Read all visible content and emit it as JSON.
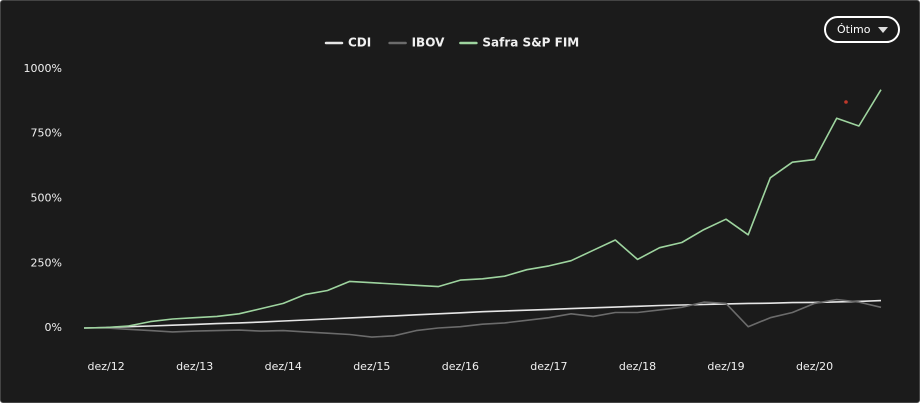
{
  "controls": {
    "period": "Ótimo"
  },
  "chart_data": {
    "type": "line",
    "categories": [
      null,
      "dez/12",
      null,
      null,
      null,
      "dez/13",
      null,
      null,
      null,
      "dez/14",
      null,
      null,
      null,
      "dez/15",
      null,
      null,
      null,
      "dez/16",
      null,
      null,
      null,
      "dez/17",
      null,
      null,
      null,
      "dez/18",
      null,
      null,
      null,
      "dez/19",
      null,
      null,
      null,
      "dez/20",
      null,
      null,
      null
    ],
    "series": [
      {
        "name": "CDI",
        "color": "#e6e6e6",
        "values": [
          0,
          2,
          5,
          8,
          11,
          14,
          17,
          20,
          23,
          27,
          31,
          35,
          39,
          43,
          47,
          51,
          55,
          59,
          63,
          66,
          69,
          72,
          75,
          78,
          81,
          84,
          87,
          89,
          91,
          93,
          95,
          96,
          98,
          99,
          101,
          103,
          106
        ]
      },
      {
        "name": "IBOV",
        "color": "#6b6b6b",
        "values": [
          0,
          0,
          -5,
          -10,
          -15,
          -12,
          -10,
          -8,
          -12,
          -10,
          -15,
          -20,
          -25,
          -35,
          -30,
          -10,
          0,
          5,
          15,
          20,
          30,
          40,
          55,
          45,
          60,
          60,
          70,
          80,
          100,
          95,
          5,
          40,
          60,
          95,
          110,
          100,
          80
        ]
      },
      {
        "name": "Safra S&P FIM",
        "color": "#9ed49f",
        "values": [
          0,
          2,
          8,
          25,
          35,
          40,
          45,
          55,
          75,
          95,
          130,
          145,
          180,
          175,
          170,
          165,
          160,
          185,
          190,
          200,
          225,
          240,
          260,
          300,
          340,
          265,
          310,
          330,
          380,
          420,
          360,
          580,
          640,
          650,
          810,
          780,
          920
        ]
      }
    ],
    "ylim": [
      -40,
      1040
    ],
    "yticks": [
      {
        "value": 0,
        "label": "0%"
      },
      {
        "value": 250,
        "label": "250%"
      },
      {
        "value": 500,
        "label": "500%"
      },
      {
        "value": 750,
        "label": "750%"
      },
      {
        "value": 1000,
        "label": "1000%"
      }
    ],
    "grid": false
  }
}
